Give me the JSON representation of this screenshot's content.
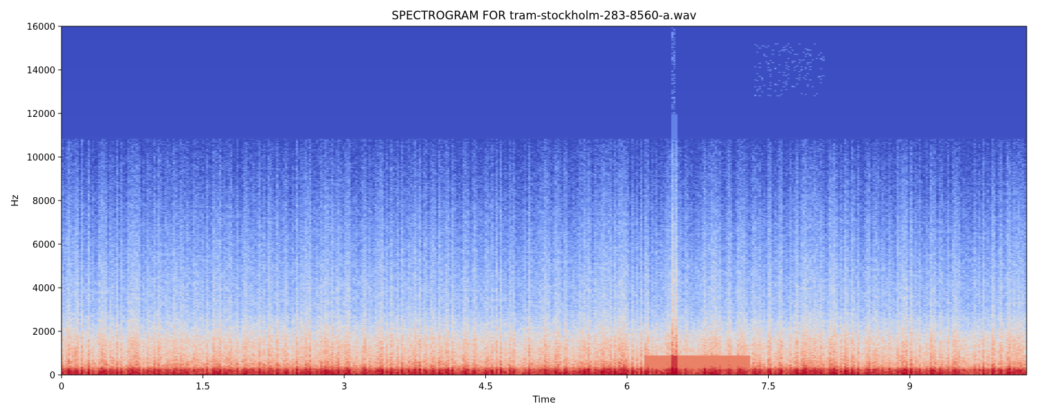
{
  "chart_data": {
    "type": "heatmap",
    "title": "SPECTROGRAM FOR tram-stockholm-283-8560-a.wav",
    "xlabel": "Time",
    "ylabel": "Hz",
    "xlim": [
      0,
      10.24
    ],
    "ylim": [
      0,
      16000
    ],
    "x_ticks": [
      {
        "value": 0,
        "label": "0"
      },
      {
        "value": 1.5,
        "label": "1.5"
      },
      {
        "value": 3,
        "label": "3"
      },
      {
        "value": 4.5,
        "label": "4.5"
      },
      {
        "value": 6,
        "label": "6"
      },
      {
        "value": 7.5,
        "label": "7.5"
      },
      {
        "value": 9,
        "label": "9"
      }
    ],
    "y_ticks": [
      {
        "value": 0,
        "label": "0"
      },
      {
        "value": 2000,
        "label": "2000"
      },
      {
        "value": 4000,
        "label": "4000"
      },
      {
        "value": 6000,
        "label": "6000"
      },
      {
        "value": 8000,
        "label": "8000"
      },
      {
        "value": 10000,
        "label": "10000"
      },
      {
        "value": 12000,
        "label": "12000"
      },
      {
        "value": 14000,
        "label": "14000"
      },
      {
        "value": 16000,
        "label": "16000"
      }
    ],
    "colormap": "coolwarm",
    "colormap_stops": [
      "#3b4cc0",
      "#6f92f3",
      "#aac7fd",
      "#dddddd",
      "#f7b89c",
      "#e7745b",
      "#b40426"
    ],
    "grid": false,
    "legend": "none",
    "intensity_profile_by_frequency": [
      {
        "hz": 0,
        "level": 0.96
      },
      {
        "hz": 250,
        "level": 0.9
      },
      {
        "hz": 400,
        "level": 0.74
      },
      {
        "hz": 800,
        "level": 0.64
      },
      {
        "hz": 1500,
        "level": 0.57
      },
      {
        "hz": 2200,
        "level": 0.46
      },
      {
        "hz": 3000,
        "level": 0.36
      },
      {
        "hz": 4000,
        "level": 0.33
      },
      {
        "hz": 5500,
        "level": 0.26
      },
      {
        "hz": 7000,
        "level": 0.2
      },
      {
        "hz": 8500,
        "level": 0.13
      },
      {
        "hz": 10000,
        "level": 0.07
      },
      {
        "hz": 11000,
        "level": 0.01
      },
      {
        "hz": 16000,
        "level": 0.0
      }
    ],
    "features": [
      {
        "name": "broadband-transient",
        "time": 6.5,
        "hz_from": 0,
        "hz_to": 16000
      },
      {
        "name": "low-frequency-band",
        "time_from": 6.2,
        "time_to": 7.3,
        "hz_from": 300,
        "hz_to": 900
      },
      {
        "name": "sparse-high-tones",
        "time_from": 7.35,
        "time_to": 8.1,
        "hz_from": 12800,
        "hz_to": 15200
      }
    ]
  }
}
